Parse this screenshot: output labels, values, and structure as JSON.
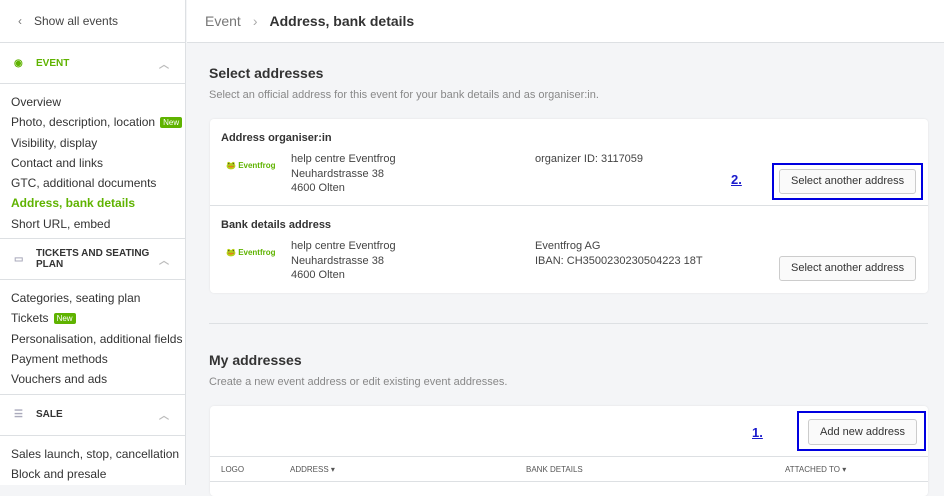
{
  "sidebar": {
    "back": "Show all events",
    "sections": [
      {
        "label": "EVENT",
        "items": [
          "Overview",
          "Photo, description, location",
          "Visibility, display",
          "Contact and links",
          "GTC, additional documents",
          "Address, bank details",
          "Short URL, embed"
        ]
      },
      {
        "label": "TICKETS AND SEATING PLAN",
        "items": [
          "Categories, seating plan",
          "Tickets",
          "Personalisation, additional fields",
          "Payment methods",
          "Vouchers and ads"
        ]
      },
      {
        "label": "SALE",
        "items": [
          "Sales launch, stop, cancellation",
          "Block and presale"
        ]
      }
    ],
    "badge": "New"
  },
  "breadcrumb": {
    "parent": "Event",
    "current": "Address, bank details"
  },
  "select": {
    "title": "Select addresses",
    "subtitle": "Select an official address for this event for your bank details and as organiser:in.",
    "organiser": {
      "title": "Address organiser:in",
      "logo": "Eventfrog",
      "lines": [
        "help centre Eventfrog",
        "Neuhardstrasse 38",
        "4600 Olten"
      ],
      "extra": [
        "organizer ID: 3117059"
      ],
      "button": "Select another address"
    },
    "bank": {
      "title": "Bank details address",
      "logo": "Eventfrog",
      "lines": [
        "help centre Eventfrog",
        "Neuhardstrasse 38",
        "4600 Olten"
      ],
      "extra": [
        "Eventfrog AG",
        "IBAN: CH3500230230504223 18T"
      ],
      "button": "Select another address"
    }
  },
  "mine": {
    "title": "My addresses",
    "subtitle": "Create a new event address or edit existing event addresses.",
    "button": "Add new address",
    "columns": [
      "LOGO",
      "ADDRESS",
      "BANK DETAILS",
      "ATTACHED TO"
    ]
  },
  "annotations": {
    "step1": "1.",
    "step2": "2."
  },
  "colors": {
    "accent": "#5fb300",
    "annotation": "#0000e0"
  }
}
